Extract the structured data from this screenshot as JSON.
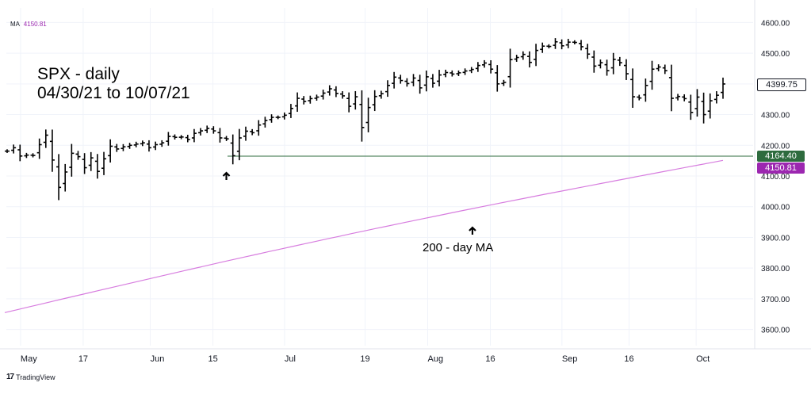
{
  "legend": {
    "ma_label": "MA",
    "ma_value": "4150.81"
  },
  "title_lines": [
    "SPX - daily",
    "04/30/21 to 10/07/21"
  ],
  "annotations": {
    "ma_label": "200 - day MA"
  },
  "branding": {
    "logo": "17",
    "text": "TradingView"
  },
  "price_tags": {
    "last": {
      "text": "4399.75",
      "color": "#ffffff",
      "text_color": "#131722",
      "border": "#131722"
    },
    "level": {
      "text": "4164.40",
      "color": "#2e6b3e",
      "text_color": "#ffffff"
    },
    "ma": {
      "text": "4150.81",
      "color": "#9c27b0",
      "text_color": "#ffffff"
    }
  },
  "colors": {
    "bars": "#000000",
    "ma_line": "#d77ddf",
    "level_line": "#2e6b3e",
    "grid": "#f0f3fa",
    "axis_text": "#131722"
  },
  "chart_data": {
    "type": "line",
    "title": "SPX - daily",
    "subtitle": "04/30/21 to 10/07/21",
    "ylim": [
      3550,
      4650
    ],
    "y_ticks": [
      3600,
      3700,
      3800,
      3900,
      4000,
      4100,
      4200,
      4300,
      4400,
      4500,
      4600
    ],
    "y_tick_labels": [
      "3600.00",
      "3700.00",
      "3800.00",
      "3900.00",
      "4000.00",
      "4100.00",
      "4200.00",
      "4300.00",
      "4400.00",
      "4500.00",
      "4600.00"
    ],
    "x_ticks": [
      {
        "label": "May",
        "date": "2021-05-03"
      },
      {
        "label": "17",
        "date": "2021-05-17"
      },
      {
        "label": "Jun",
        "date": "2021-06-01"
      },
      {
        "label": "15",
        "date": "2021-06-15"
      },
      {
        "label": "Jul",
        "date": "2021-07-01"
      },
      {
        "label": "19",
        "date": "2021-07-19"
      },
      {
        "label": "Aug",
        "date": "2021-08-02"
      },
      {
        "label": "16",
        "date": "2021-08-16"
      },
      {
        "label": "Sep",
        "date": "2021-09-01"
      },
      {
        "label": "16",
        "date": "2021-09-16"
      },
      {
        "label": "Oct",
        "date": "2021-10-01"
      }
    ],
    "grid": true,
    "horizontal_level": 4164.4,
    "series": [
      {
        "type": "ohlc",
        "close_values": [
          4181,
          4192,
          4165,
          4168,
          4167,
          4202,
          4233,
          4152,
          4063,
          4113,
          4174,
          4163,
          4127,
          4159,
          4115,
          4156,
          4197,
          4188,
          4195,
          4200,
          4204,
          4208,
          4192,
          4202,
          4208,
          4229,
          4226,
          4227,
          4219,
          4239,
          4247,
          4255,
          4247,
          4224,
          4221,
          4166,
          4224,
          4246,
          4241,
          4266,
          4281,
          4291,
          4291,
          4298,
          4320,
          4353,
          4343,
          4352,
          4357,
          4370,
          4384,
          4369,
          4361,
          4327,
          4358,
          4258,
          4323,
          4359,
          4368,
          4395,
          4422,
          4411,
          4401,
          4419,
          4387,
          4423,
          4402,
          4429,
          4437,
          4432,
          4436,
          4442,
          4447,
          4460,
          4468,
          4448,
          4400,
          4405,
          4479,
          4486,
          4496,
          4470,
          4509,
          4523,
          4522,
          4537,
          4524,
          4536,
          4535,
          4521,
          4497,
          4458,
          4469,
          4443,
          4480,
          4469,
          4433,
          4358,
          4354,
          4395,
          4448,
          4455,
          4443,
          4353,
          4359,
          4352,
          4307,
          4357,
          4300,
          4345,
          4363,
          4399.75
        ],
        "date_start": "2021-04-30",
        "date_end": "2021-10-07"
      },
      {
        "name": "MA",
        "type": "line",
        "values_start": 3655,
        "values_end": 4150.81
      }
    ],
    "annotations": [
      {
        "text": "200 - day MA"
      },
      {
        "marker": "up-arrow",
        "date": "2021-06-18"
      },
      {
        "marker": "up-arrow",
        "date": "2021-08-12"
      }
    ]
  }
}
